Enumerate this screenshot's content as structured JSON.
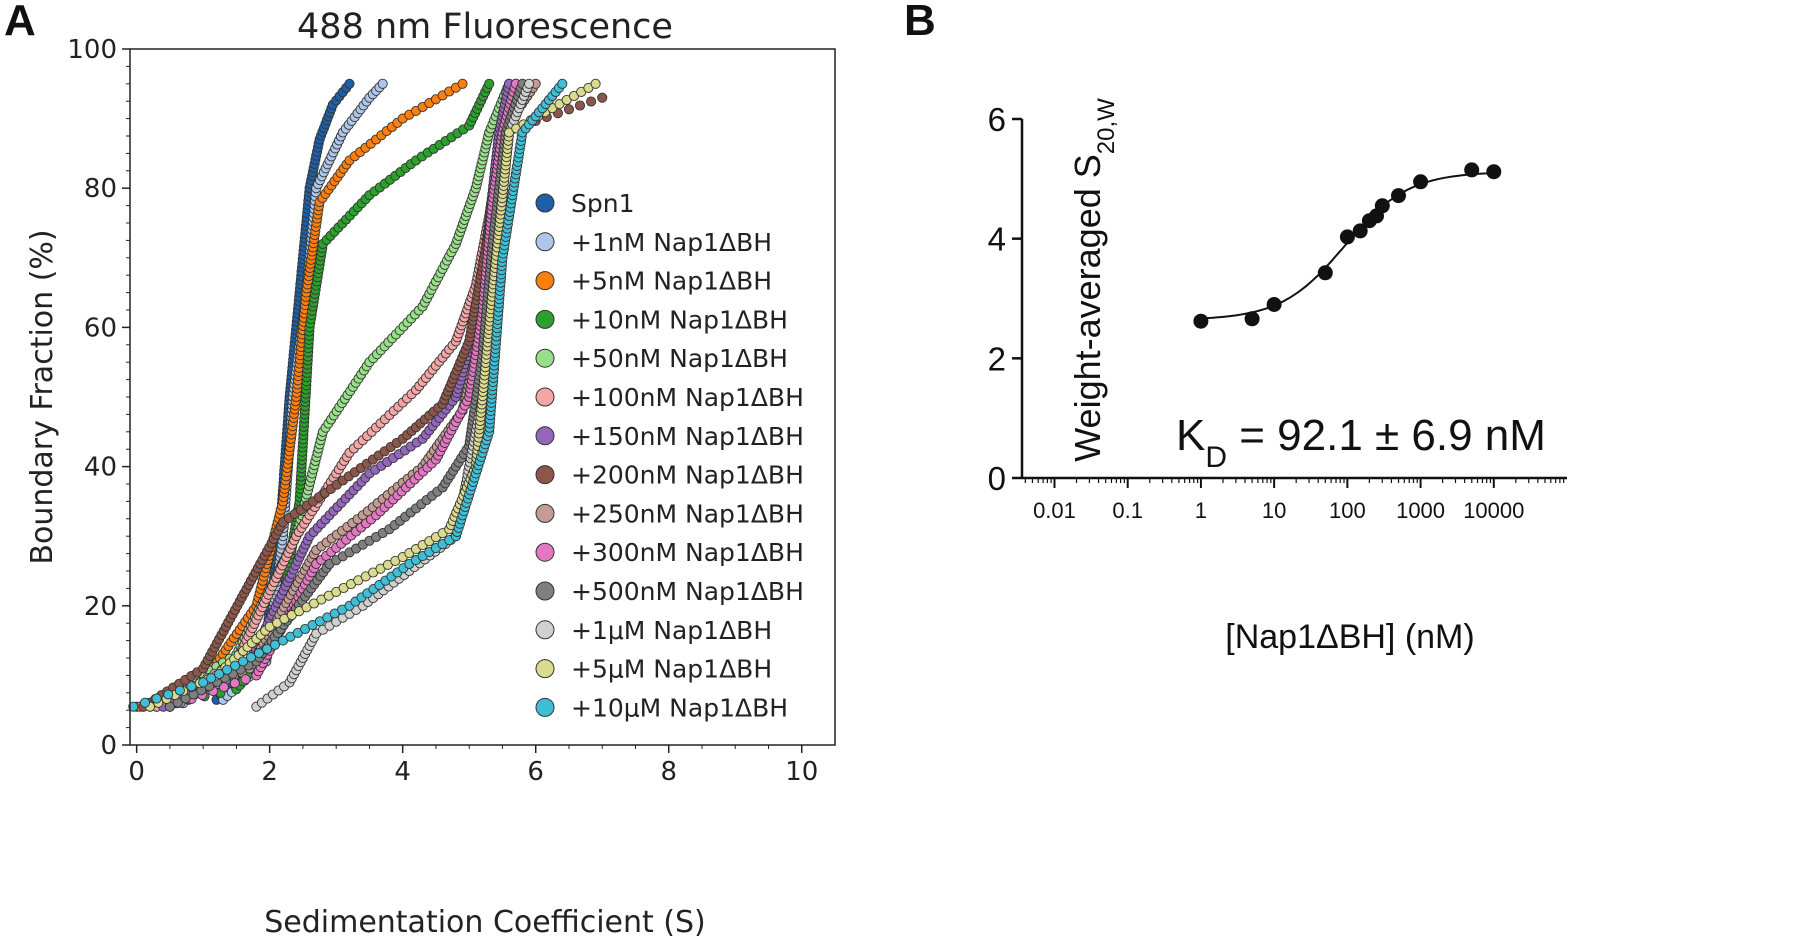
{
  "panels": {
    "a_letter": "A",
    "b_letter": "B"
  },
  "chart_data": [
    {
      "type": "scatter",
      "title": "488 nm Fluorescence",
      "xlabel": "Sedimentation Coefficient (S)",
      "ylabel": "Boundary Fraction (%)",
      "xlim": [
        -0.1,
        10.5
      ],
      "ylim": [
        0,
        100
      ],
      "x_ticks": [
        0,
        2,
        4,
        6,
        8,
        10
      ],
      "y_ticks": [
        0,
        20,
        40,
        60,
        80,
        100
      ],
      "grid": false,
      "legend_position": "center-right",
      "series": [
        {
          "name": "Spn1",
          "color": "#1f5fa8",
          "points": [
            [
              0,
              5.5
            ],
            [
              1.2,
              6.5
            ],
            [
              1.9,
              12
            ],
            [
              2.15,
              30
            ],
            [
              2.3,
              50
            ],
            [
              2.45,
              65
            ],
            [
              2.6,
              80
            ],
            [
              2.75,
              87
            ],
            [
              2.95,
              92
            ],
            [
              3.2,
              95
            ]
          ]
        },
        {
          "name": "+1nM Nap1ΔBH",
          "color": "#aec7e8",
          "points": [
            [
              0.1,
              5.5
            ],
            [
              1.3,
              6.5
            ],
            [
              1.95,
              12
            ],
            [
              2.2,
              30
            ],
            [
              2.35,
              50
            ],
            [
              2.55,
              65
            ],
            [
              2.7,
              80
            ],
            [
              3.1,
              88
            ],
            [
              3.5,
              93
            ],
            [
              3.7,
              95
            ]
          ]
        },
        {
          "name": "+5nM Nap1ΔBH",
          "color": "#ff7f0e",
          "points": [
            [
              0.05,
              5.5
            ],
            [
              1.0,
              9
            ],
            [
              1.8,
              20
            ],
            [
              2.2,
              35
            ],
            [
              2.4,
              50
            ],
            [
              2.55,
              65
            ],
            [
              2.75,
              78
            ],
            [
              3.2,
              84
            ],
            [
              4.0,
              90
            ],
            [
              4.9,
              95
            ]
          ]
        },
        {
          "name": "+10nM Nap1ΔBH",
          "color": "#2ca02c",
          "points": [
            [
              0.3,
              5.5
            ],
            [
              1.5,
              8
            ],
            [
              2.1,
              15
            ],
            [
              2.45,
              35
            ],
            [
              2.6,
              60
            ],
            [
              2.8,
              72
            ],
            [
              3.5,
              79
            ],
            [
              4.2,
              84
            ],
            [
              5.0,
              89
            ],
            [
              5.3,
              95
            ]
          ]
        },
        {
          "name": "+50nM Nap1ΔBH",
          "color": "#98df8a",
          "points": [
            [
              0.2,
              5.5
            ],
            [
              1.5,
              13
            ],
            [
              2.4,
              30
            ],
            [
              2.8,
              45
            ],
            [
              3.5,
              55
            ],
            [
              4.3,
              63
            ],
            [
              4.8,
              72
            ],
            [
              5.1,
              80
            ],
            [
              5.3,
              88
            ],
            [
              5.6,
              95
            ]
          ]
        },
        {
          "name": "+100nM Nap1ΔBH",
          "color": "#f4a6a6",
          "points": [
            [
              0.3,
              5.5
            ],
            [
              1.5,
              12
            ],
            [
              2.4,
              30
            ],
            [
              3.2,
              42
            ],
            [
              4.2,
              51
            ],
            [
              4.8,
              58
            ],
            [
              5.1,
              66
            ],
            [
              5.3,
              76
            ],
            [
              5.5,
              88
            ],
            [
              5.7,
              95
            ]
          ]
        },
        {
          "name": "+150nM Nap1ΔBH",
          "color": "#9467bd",
          "points": [
            [
              0.4,
              5.5
            ],
            [
              1.7,
              12
            ],
            [
              2.6,
              30
            ],
            [
              3.5,
              39
            ],
            [
              4.3,
              44
            ],
            [
              4.8,
              50
            ],
            [
              5.1,
              60
            ],
            [
              5.3,
              75
            ],
            [
              5.45,
              88
            ],
            [
              5.6,
              95
            ]
          ]
        },
        {
          "name": "+200nM Nap1ΔBH",
          "color": "#8c564b",
          "points": [
            [
              0.1,
              5.5
            ],
            [
              1.0,
              11
            ],
            [
              2.2,
              32
            ],
            [
              3.1,
              38
            ],
            [
              4.0,
              44
            ],
            [
              4.6,
              49
            ],
            [
              5.0,
              58
            ],
            [
              5.3,
              74
            ],
            [
              5.5,
              88
            ],
            [
              7.0,
              93
            ]
          ]
        },
        {
          "name": "+250nM Nap1ΔBH",
          "color": "#c49c94",
          "points": [
            [
              0.5,
              5.5
            ],
            [
              1.7,
              11
            ],
            [
              2.7,
              28
            ],
            [
              3.4,
              33
            ],
            [
              4.3,
              40
            ],
            [
              4.9,
              48
            ],
            [
              5.2,
              60
            ],
            [
              5.35,
              75
            ],
            [
              5.5,
              88
            ],
            [
              6.0,
              95
            ]
          ]
        },
        {
          "name": "+300nM Nap1ΔBH",
          "color": "#e377c2",
          "points": [
            [
              0.5,
              5.5
            ],
            [
              1.8,
              10
            ],
            [
              2.7,
              26
            ],
            [
              3.6,
              33
            ],
            [
              4.5,
              41
            ],
            [
              5.0,
              50
            ],
            [
              5.2,
              62
            ],
            [
              5.35,
              78
            ],
            [
              5.5,
              88
            ],
            [
              5.7,
              95
            ]
          ]
        },
        {
          "name": "+500nM Nap1ΔBH",
          "color": "#7f7f7f",
          "points": [
            [
              0.5,
              5.5
            ],
            [
              1.8,
              12
            ],
            [
              2.9,
              26
            ],
            [
              3.8,
              31
            ],
            [
              4.6,
              37
            ],
            [
              5.0,
              43
            ],
            [
              5.2,
              56
            ],
            [
              5.35,
              72
            ],
            [
              5.55,
              88
            ],
            [
              5.8,
              95
            ]
          ]
        },
        {
          "name": "+1μM Nap1ΔBH",
          "color": "#d0d0d0",
          "points": [
            [
              1.8,
              5.5
            ],
            [
              2.3,
              9
            ],
            [
              2.7,
              16
            ],
            [
              3.4,
              20
            ],
            [
              4.1,
              25
            ],
            [
              4.8,
              30
            ],
            [
              5.2,
              50
            ],
            [
              5.4,
              70
            ],
            [
              5.6,
              88
            ],
            [
              5.9,
              95
            ]
          ]
        },
        {
          "name": "+5μM Nap1ΔBH",
          "color": "#dbdb8d",
          "points": [
            [
              0.2,
              5.5
            ],
            [
              1.2,
              10
            ],
            [
              2.0,
              17
            ],
            [
              3.0,
              22
            ],
            [
              4.0,
              27
            ],
            [
              4.7,
              31
            ],
            [
              5.1,
              40
            ],
            [
              5.35,
              65
            ],
            [
              5.6,
              88
            ],
            [
              6.9,
              95
            ]
          ]
        },
        {
          "name": "+10μM Nap1ΔBH",
          "color": "#3fbfd6",
          "points": [
            [
              -0.05,
              5.5
            ],
            [
              1.0,
              9
            ],
            [
              2.2,
              15
            ],
            [
              3.2,
              20
            ],
            [
              4.1,
              26
            ],
            [
              4.8,
              30
            ],
            [
              5.3,
              45
            ],
            [
              5.5,
              70
            ],
            [
              5.8,
              88
            ],
            [
              6.4,
              95
            ]
          ]
        }
      ]
    },
    {
      "type": "line",
      "xlabel": "[Nap1ΔBH] (nM)",
      "ylabel_main": "Weight-averaged S",
      "ylabel_sub": "20,W",
      "annotation_main": "K",
      "annotation_sub": "D",
      "annotation_rest": " = 92.1 ± 6.9 nM",
      "x_scale": "log",
      "xlim": [
        0.0036,
        100000
      ],
      "ylim": [
        0,
        6
      ],
      "x_ticks": [
        "0.01",
        "0.1",
        "1",
        "10",
        "100",
        "1000",
        "10000"
      ],
      "x_tick_values": [
        0.01,
        0.1,
        1,
        10,
        100,
        1000,
        10000
      ],
      "y_ticks": [
        0,
        2,
        4,
        6
      ],
      "grid": false,
      "points": [
        [
          1,
          2.62
        ],
        [
          5,
          2.66
        ],
        [
          10,
          2.9
        ],
        [
          50,
          3.43
        ],
        [
          100,
          4.03
        ],
        [
          150,
          4.13
        ],
        [
          200,
          4.3
        ],
        [
          250,
          4.38
        ],
        [
          300,
          4.55
        ],
        [
          500,
          4.72
        ],
        [
          1000,
          4.95
        ],
        [
          5000,
          5.15
        ],
        [
          10000,
          5.12
        ]
      ],
      "fit": {
        "kd": 92.1,
        "bottom": 2.64,
        "top": 5.12
      }
    }
  ]
}
